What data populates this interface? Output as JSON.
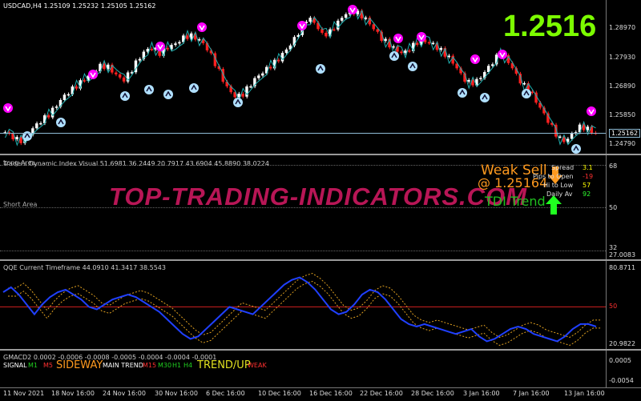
{
  "main": {
    "header": "USDCAD,H4  1.25109 1.25232 1.25105 1.25162",
    "big_price": "1.2516",
    "current_price": "1.25162",
    "ticks": [
      "1.28970",
      "1.27930",
      "1.26890",
      "1.25850",
      "1.24790"
    ],
    "colors": {
      "big_price": "#7cfc00",
      "bull": "#ffffff",
      "bear": "#ff2020",
      "ma": "#20b0b0",
      "price_line": "#4080c0",
      "sell_arrow": "#ff00ff",
      "buy_arrow": "#b0e0ff"
    }
  },
  "tdi": {
    "header": "Traders Dynamic Index Visual 51.6981 36.2449 20.7917 43.6904 45.8890 38.0224",
    "long_area": "Long Area",
    "short_area": "Short Area",
    "weak_sell": "Weak Sell",
    "weak_sell_price": "@ 1.25164",
    "tdi_trend": "TDI Trend",
    "info": [
      {
        "label": "Spread",
        "value": "3.1",
        "color": "#ffff00"
      },
      {
        "label": "Pips to Open",
        "value": "-19",
        "color": "#ff3030"
      },
      {
        "label": "Hi to Low",
        "value": "57",
        "color": "#ffff00"
      },
      {
        "label": "Daily Av",
        "value": "92",
        "color": "#30ff30"
      }
    ],
    "ticks": [
      "68",
      "50",
      "32",
      "27.0083"
    ],
    "watermark": "TOP-TRADING-INDICATORS.COM"
  },
  "qqe": {
    "header": "QQE Current Timeframe 44.0910 41.3417 38.5543",
    "ticks": [
      "80.8711",
      "50",
      "20.9822"
    ],
    "line": [
      62,
      66,
      60,
      52,
      44,
      52,
      58,
      62,
      64,
      60,
      56,
      50,
      48,
      52,
      56,
      58,
      60,
      58,
      54,
      50,
      46,
      40,
      34,
      28,
      24,
      26,
      32,
      38,
      44,
      50,
      48,
      46,
      44,
      50,
      56,
      62,
      68,
      72,
      74,
      70,
      64,
      56,
      48,
      44,
      46,
      52,
      60,
      64,
      62,
      56,
      48,
      40,
      36,
      34,
      36,
      34,
      32,
      30,
      28,
      30,
      32,
      26,
      22,
      24,
      28,
      32,
      34,
      32,
      28,
      26,
      24,
      22,
      26,
      32,
      36,
      36,
      34
    ]
  },
  "gmacd": {
    "header": "GMACD2 0.0002 -0.0006 -0.0008 -0.0005 -0.0004 -0.0004 -0.0001",
    "signal_label": "SIGNAL",
    "m1": "M1",
    "m5": "M5",
    "sideway": "SIDEWAY",
    "main_trend_label": "MAIN TREND",
    "m15": "M15",
    "m30": "M30",
    "h1": "H1",
    "h4": "H4",
    "trend_up": "TREND/UP",
    "weak": "WEAK",
    "ticks": [
      "0.0005",
      "-0.0054"
    ]
  },
  "dates": [
    "11 Nov 2021",
    "18 Nov 16:00",
    "24 Nov 16:00",
    "30 Nov 16:00",
    "6 Dec 16:00",
    "10 Dec 16:00",
    "16 Dec 16:00",
    "22 Dec 16:00",
    "28 Dec 16:00",
    "3 Jan 16:00",
    "7 Jan 16:00",
    "13 Jan 16:00"
  ],
  "price_series": [
    1.252,
    1.2505,
    1.249,
    1.251,
    1.254,
    1.256,
    1.258,
    1.261,
    1.264,
    1.266,
    1.268,
    1.27,
    1.272,
    1.274,
    1.2735,
    1.271,
    1.269,
    1.272,
    1.276,
    1.279,
    1.28,
    1.278,
    1.28,
    1.281,
    1.283,
    1.284,
    1.283,
    1.281,
    1.277,
    1.272,
    1.267,
    1.264,
    1.264,
    1.267,
    1.27,
    1.272,
    1.274,
    1.276,
    1.279,
    1.282,
    1.286,
    1.29,
    1.288,
    1.284,
    1.285,
    1.288,
    1.291,
    1.292,
    1.291,
    1.289,
    1.286,
    1.283,
    1.281,
    1.279,
    1.278,
    1.28,
    1.282,
    1.282,
    1.281,
    1.279,
    1.277,
    1.274,
    1.27,
    1.268,
    1.269,
    1.272,
    1.275,
    1.278,
    1.276,
    1.272,
    1.268,
    1.266,
    1.262,
    1.258,
    1.254,
    1.25,
    1.249,
    1.252,
    1.254,
    1.253,
    1.2516
  ]
}
